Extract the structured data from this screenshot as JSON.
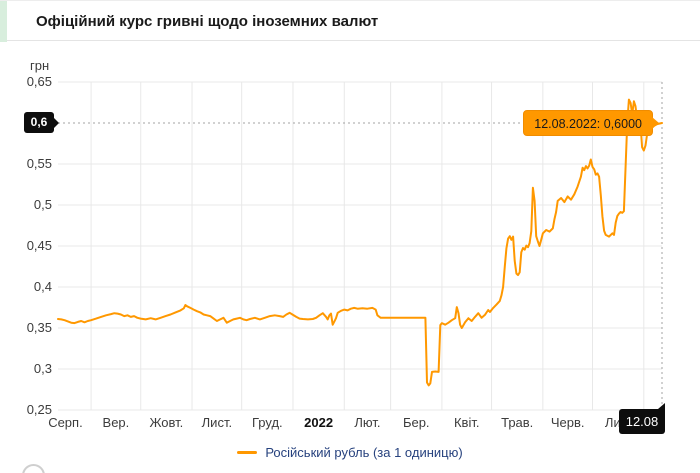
{
  "header": {
    "title": "Офіційний курс гривні щодо іноземних валют"
  },
  "legend": {
    "items": [
      {
        "label": "Російський рубль (за 1 одиницю)",
        "color": "#ff9800"
      }
    ]
  },
  "colors": {
    "line": "#ff9800",
    "grid": "#e8e8e8",
    "dashed": "#a3a3a3",
    "badge_bg": "#0d0d0d",
    "tooltip_bg": "#ff9800",
    "legend_text": "#27427e",
    "tick_text": "#3c3c3c"
  },
  "chart_data": {
    "type": "line",
    "title": "Офіційний курс гривні щодо іноземних валют",
    "unit_label": "грн",
    "xlabel": "",
    "ylabel": "грн",
    "grid": true,
    "x_domain_days": [
      0,
      365
    ],
    "x_start_date": "12.08.2021",
    "x_end_date": "12.08.2022",
    "y_domain": [
      0.25,
      0.65
    ],
    "y_ticks": [
      {
        "label": "0,65",
        "value": 0.65
      },
      {
        "label": "0,55",
        "value": 0.55
      },
      {
        "label": "0,5",
        "value": 0.5
      },
      {
        "label": "0,45",
        "value": 0.45
      },
      {
        "label": "0,4",
        "value": 0.4
      },
      {
        "label": "0,35",
        "value": 0.35
      },
      {
        "label": "0,3",
        "value": 0.3
      },
      {
        "label": "0,25",
        "value": 0.25
      }
    ],
    "x_ticks": [
      {
        "label": "Серп.",
        "day": 4.5,
        "bold": false
      },
      {
        "label": "Вер.",
        "day": 35,
        "bold": false
      },
      {
        "label": "Жовт.",
        "day": 65.5,
        "bold": false
      },
      {
        "label": "Лист.",
        "day": 96,
        "bold": false
      },
      {
        "label": "Груд.",
        "day": 126.5,
        "bold": false
      },
      {
        "label": "2022",
        "day": 157.5,
        "bold": true
      },
      {
        "label": "Лют.",
        "day": 187,
        "bold": false
      },
      {
        "label": "Бер.",
        "day": 216.5,
        "bold": false
      },
      {
        "label": "Квіт.",
        "day": 247,
        "bold": false
      },
      {
        "label": "Трав.",
        "day": 277.5,
        "bold": false
      },
      {
        "label": "Черв.",
        "day": 308,
        "bold": false
      },
      {
        "label": "Лип.",
        "day": 338.5,
        "bold": false
      }
    ],
    "x_gridline_days": [
      20,
      50,
      81,
      111,
      142,
      173,
      201,
      232,
      262,
      293,
      323,
      354
    ],
    "highlight": {
      "date": "12.08.2022",
      "value": 0.6,
      "value_label": "0,6000",
      "tooltip": "12.08.2022: 0,6000",
      "y_axis_badge": "0,6",
      "x_axis_badge": "12.08"
    },
    "series": [
      {
        "name": "Російський рубль (за 1 одиницю)",
        "color": "#ff9800",
        "points": [
          [
            0,
            0.361
          ],
          [
            2,
            0.3605
          ],
          [
            4,
            0.3595
          ],
          [
            6,
            0.358
          ],
          [
            8,
            0.3565
          ],
          [
            10,
            0.356
          ],
          [
            12,
            0.3575
          ],
          [
            14,
            0.3585
          ],
          [
            16,
            0.357
          ],
          [
            18,
            0.3585
          ],
          [
            20,
            0.3595
          ],
          [
            23,
            0.3615
          ],
          [
            26,
            0.3635
          ],
          [
            29,
            0.3655
          ],
          [
            32,
            0.367
          ],
          [
            34,
            0.368
          ],
          [
            36,
            0.3675
          ],
          [
            38,
            0.3665
          ],
          [
            40,
            0.3645
          ],
          [
            42,
            0.3655
          ],
          [
            44,
            0.3635
          ],
          [
            46,
            0.3645
          ],
          [
            48,
            0.3625
          ],
          [
            50,
            0.3615
          ],
          [
            53,
            0.3605
          ],
          [
            56,
            0.362
          ],
          [
            59,
            0.3605
          ],
          [
            62,
            0.3625
          ],
          [
            65,
            0.3645
          ],
          [
            68,
            0.3665
          ],
          [
            71,
            0.369
          ],
          [
            74,
            0.3715
          ],
          [
            76,
            0.374
          ],
          [
            77,
            0.378
          ],
          [
            78,
            0.3765
          ],
          [
            80,
            0.3745
          ],
          [
            82,
            0.3725
          ],
          [
            84,
            0.3705
          ],
          [
            86,
            0.369
          ],
          [
            88,
            0.3665
          ],
          [
            90,
            0.3655
          ],
          [
            92,
            0.3645
          ],
          [
            94,
            0.3615
          ],
          [
            96,
            0.3585
          ],
          [
            98,
            0.3605
          ],
          [
            100,
            0.3625
          ],
          [
            102,
            0.3565
          ],
          [
            104,
            0.3585
          ],
          [
            106,
            0.3605
          ],
          [
            108,
            0.3615
          ],
          [
            110,
            0.3625
          ],
          [
            112,
            0.3605
          ],
          [
            114,
            0.3595
          ],
          [
            116,
            0.361
          ],
          [
            119,
            0.3625
          ],
          [
            122,
            0.3605
          ],
          [
            125,
            0.3625
          ],
          [
            128,
            0.3645
          ],
          [
            131,
            0.3655
          ],
          [
            134,
            0.3645
          ],
          [
            136,
            0.3635
          ],
          [
            138,
            0.3665
          ],
          [
            140,
            0.3685
          ],
          [
            142,
            0.366
          ],
          [
            144,
            0.3635
          ],
          [
            146,
            0.3615
          ],
          [
            148,
            0.361
          ],
          [
            151,
            0.3605
          ],
          [
            154,
            0.361
          ],
          [
            156,
            0.3625
          ],
          [
            158,
            0.3655
          ],
          [
            160,
            0.368
          ],
          [
            162,
            0.3635
          ],
          [
            163,
            0.3605
          ],
          [
            164,
            0.3655
          ],
          [
            165,
            0.3675
          ],
          [
            166,
            0.354
          ],
          [
            167,
            0.358
          ],
          [
            168,
            0.362
          ],
          [
            169,
            0.3685
          ],
          [
            171,
            0.371
          ],
          [
            173,
            0.3725
          ],
          [
            175,
            0.3715
          ],
          [
            177,
            0.3735
          ],
          [
            179,
            0.3745
          ],
          [
            181,
            0.3735
          ],
          [
            184,
            0.374
          ],
          [
            187,
            0.3735
          ],
          [
            190,
            0.3745
          ],
          [
            192,
            0.3725
          ],
          [
            193,
            0.3655
          ],
          [
            195,
            0.3625
          ],
          [
            200,
            0.3625
          ],
          [
            205,
            0.3625
          ],
          [
            210,
            0.3625
          ],
          [
            215,
            0.3625
          ],
          [
            220,
            0.3625
          ],
          [
            222,
            0.3625
          ],
          [
            223,
            0.2835
          ],
          [
            224,
            0.28
          ],
          [
            225,
            0.2825
          ],
          [
            226,
            0.2965
          ],
          [
            228,
            0.297
          ],
          [
            230,
            0.2965
          ],
          [
            231,
            0.3535
          ],
          [
            232,
            0.356
          ],
          [
            234,
            0.354
          ],
          [
            236,
            0.3565
          ],
          [
            238,
            0.3595
          ],
          [
            240,
            0.362
          ],
          [
            241,
            0.3755
          ],
          [
            242,
            0.368
          ],
          [
            243,
            0.354
          ],
          [
            244,
            0.35
          ],
          [
            246,
            0.357
          ],
          [
            248,
            0.362
          ],
          [
            250,
            0.3585
          ],
          [
            252,
            0.3635
          ],
          [
            254,
            0.368
          ],
          [
            256,
            0.3625
          ],
          [
            258,
            0.366
          ],
          [
            260,
            0.372
          ],
          [
            261,
            0.3695
          ],
          [
            263,
            0.3745
          ],
          [
            265,
            0.3785
          ],
          [
            267,
            0.383
          ],
          [
            268,
            0.39
          ],
          [
            269,
            0.4
          ],
          [
            270,
            0.425
          ],
          [
            271,
            0.447
          ],
          [
            272,
            0.459
          ],
          [
            273,
            0.462
          ],
          [
            274,
            0.4575
          ],
          [
            275,
            0.4615
          ],
          [
            276,
            0.432
          ],
          [
            277,
            0.4165
          ],
          [
            278,
            0.4145
          ],
          [
            279,
            0.418
          ],
          [
            280,
            0.4425
          ],
          [
            281,
            0.4475
          ],
          [
            282,
            0.4455
          ],
          [
            283,
            0.4505
          ],
          [
            284,
            0.4485
          ],
          [
            285,
            0.4535
          ],
          [
            286,
            0.468
          ],
          [
            287,
            0.521
          ],
          [
            288,
            0.505
          ],
          [
            289,
            0.462
          ],
          [
            290,
            0.4555
          ],
          [
            291,
            0.45
          ],
          [
            292,
            0.4575
          ],
          [
            293,
            0.4655
          ],
          [
            295,
            0.4695
          ],
          [
            297,
            0.4675
          ],
          [
            299,
            0.4715
          ],
          [
            300,
            0.4825
          ],
          [
            301,
            0.4915
          ],
          [
            302,
            0.505
          ],
          [
            304,
            0.5085
          ],
          [
            306,
            0.5035
          ],
          [
            308,
            0.5105
          ],
          [
            310,
            0.5065
          ],
          [
            312,
            0.513
          ],
          [
            314,
            0.5225
          ],
          [
            316,
            0.5345
          ],
          [
            317,
            0.5455
          ],
          [
            318,
            0.5425
          ],
          [
            319,
            0.5475
          ],
          [
            320,
            0.5445
          ],
          [
            321,
            0.548
          ],
          [
            322,
            0.5555
          ],
          [
            323,
            0.5465
          ],
          [
            324,
            0.5435
          ],
          [
            325,
            0.537
          ],
          [
            326,
            0.5385
          ],
          [
            327,
            0.5345
          ],
          [
            328,
            0.512
          ],
          [
            329,
            0.4865
          ],
          [
            330,
            0.4685
          ],
          [
            331,
            0.4635
          ],
          [
            333,
            0.4615
          ],
          [
            335,
            0.4655
          ],
          [
            336,
            0.4635
          ],
          [
            337,
            0.4785
          ],
          [
            338,
            0.4865
          ],
          [
            339,
            0.4895
          ],
          [
            340,
            0.4915
          ],
          [
            341,
            0.4905
          ],
          [
            342,
            0.4925
          ],
          [
            343,
            0.547
          ],
          [
            344,
            0.5985
          ],
          [
            345,
            0.6285
          ],
          [
            346,
            0.6245
          ],
          [
            347,
            0.6105
          ],
          [
            348,
            0.6265
          ],
          [
            349,
            0.6205
          ],
          [
            350,
            0.6025
          ],
          [
            352,
            0.5985
          ],
          [
            353,
            0.5705
          ],
          [
            354,
            0.5665
          ],
          [
            355,
            0.5725
          ],
          [
            356,
            0.5865
          ],
          [
            358,
            0.5925
          ],
          [
            360,
            0.5965
          ],
          [
            362,
            0.5985
          ],
          [
            364,
            0.5995
          ],
          [
            365,
            0.6
          ]
        ]
      }
    ]
  }
}
